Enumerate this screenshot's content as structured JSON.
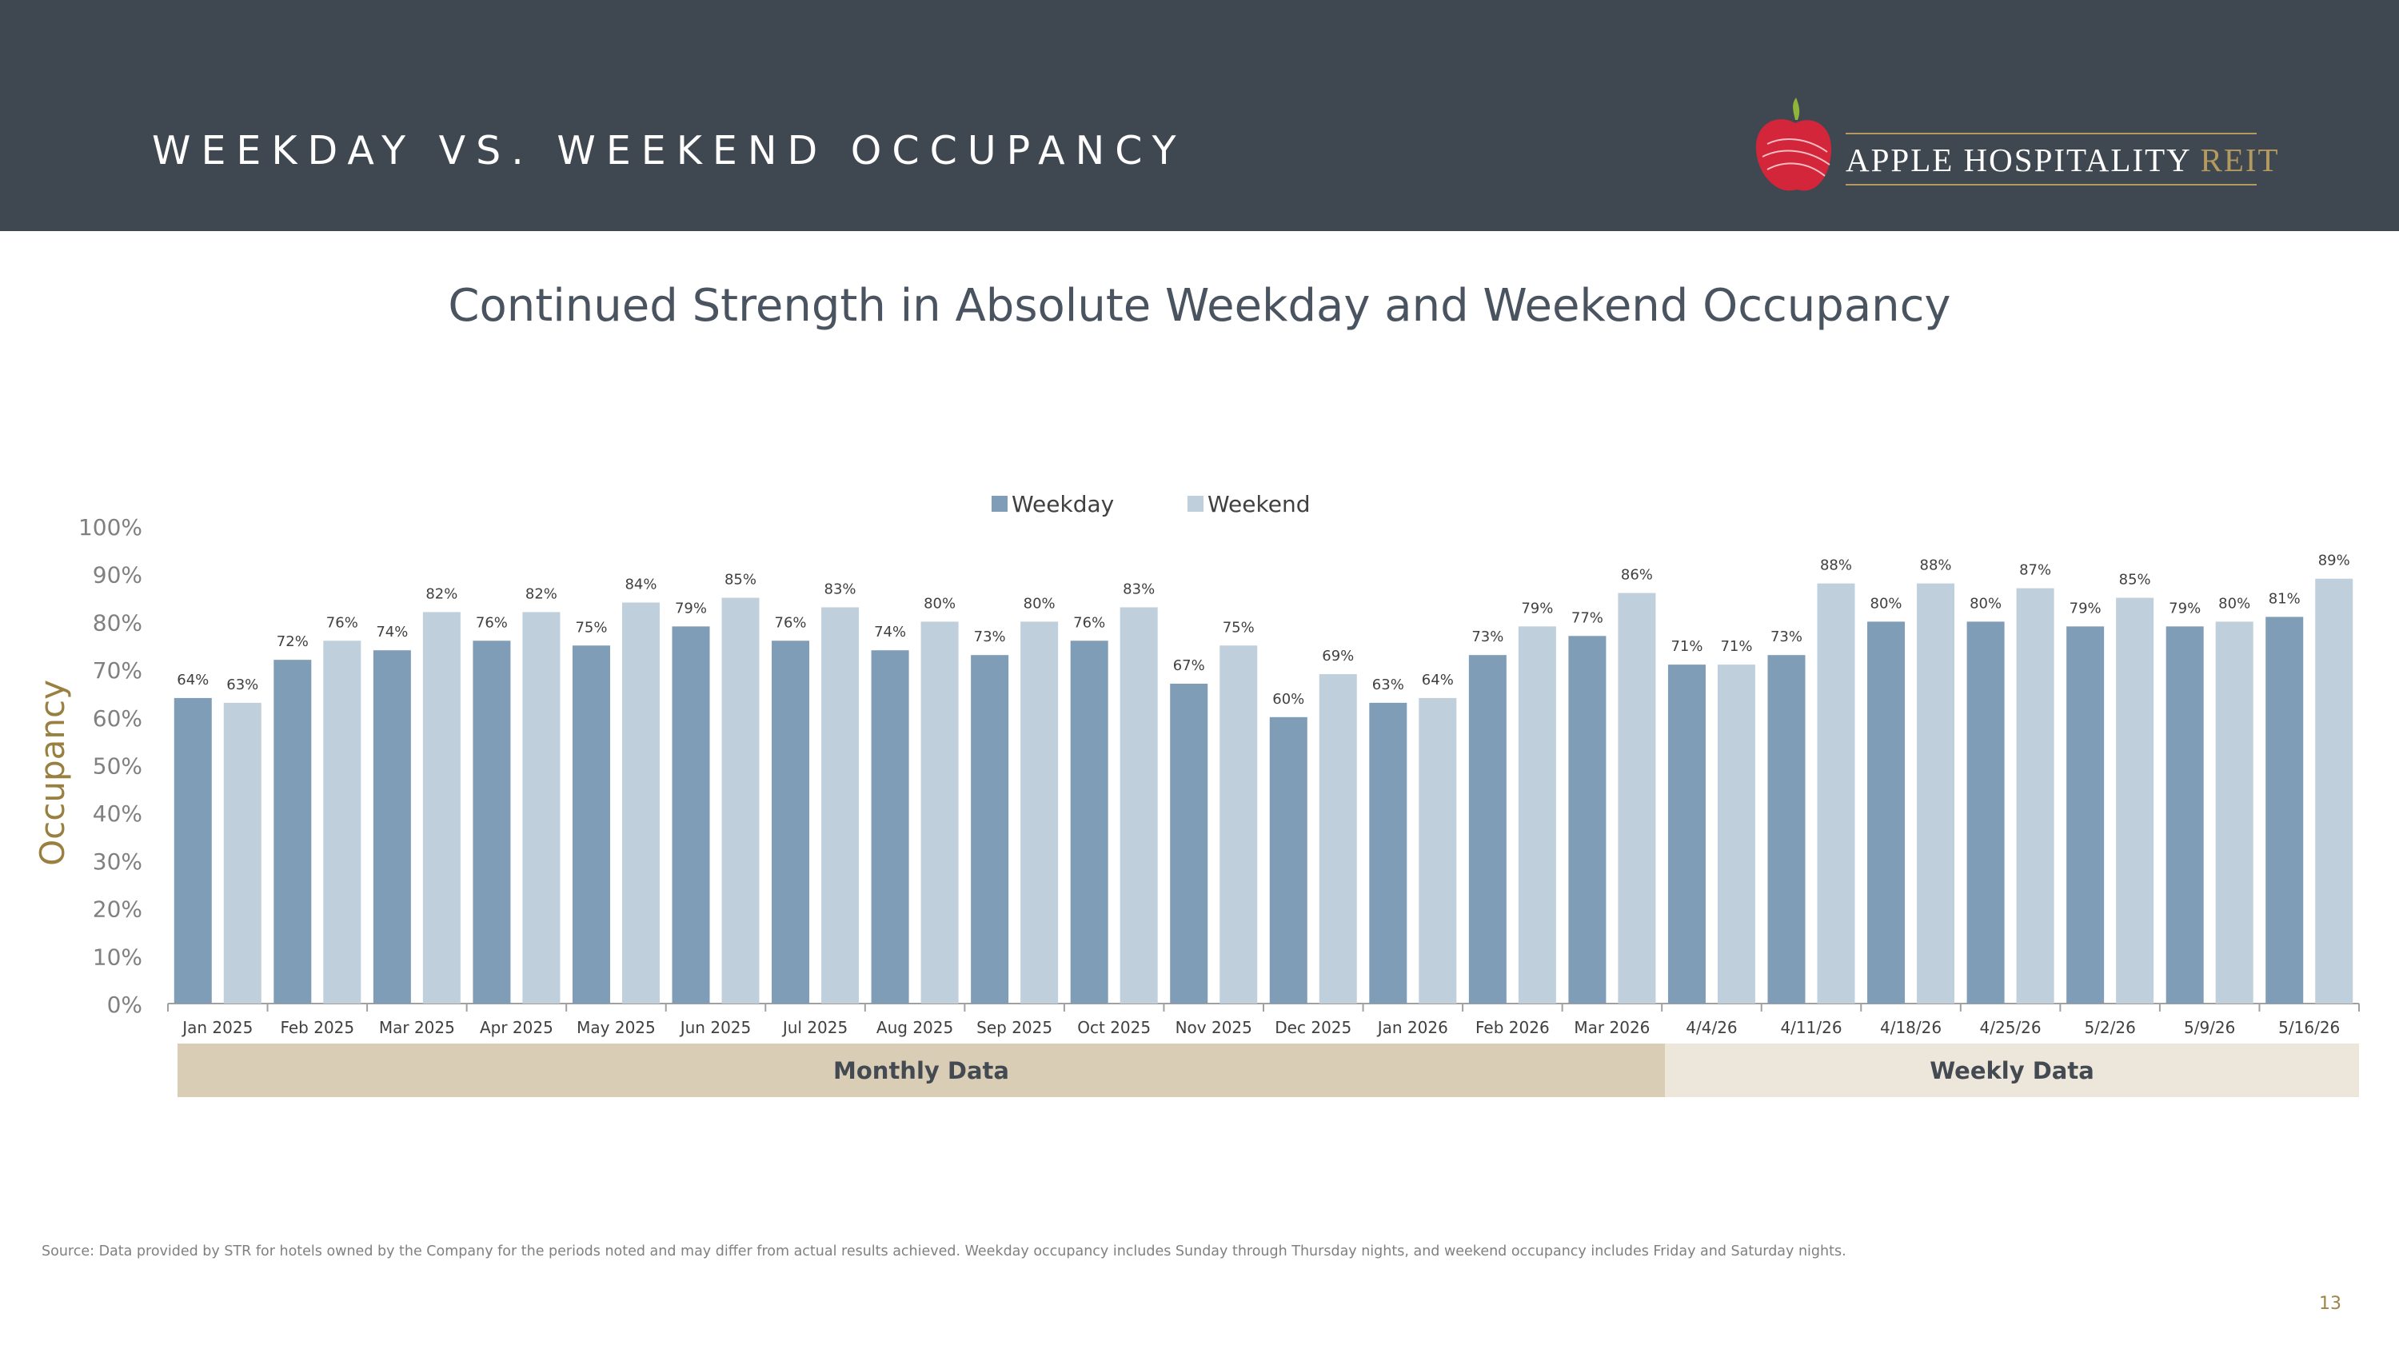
{
  "header": {
    "title": "WEEKDAY VS. WEEKEND OCCUPANCY"
  },
  "logo": {
    "brand_text": "APPLE HOSPITALITY",
    "brand_suffix": "REIT"
  },
  "chart_data": {
    "type": "bar",
    "title": "Continued Strength in Absolute Weekday and Weekend Occupancy",
    "xlabel": "",
    "ylabel": "Occupancy",
    "ylim": [
      0,
      100
    ],
    "yticks": [
      "0%",
      "10%",
      "20%",
      "30%",
      "40%",
      "50%",
      "60%",
      "70%",
      "80%",
      "90%",
      "100%"
    ],
    "legend_position": "top-center",
    "grid": false,
    "categories": [
      "Jan 2025",
      "Feb 2025",
      "Mar 2025",
      "Apr 2025",
      "May 2025",
      "Jun 2025",
      "Jul 2025",
      "Aug 2025",
      "Sep 2025",
      "Oct 2025",
      "Nov 2025",
      "Dec 2025",
      "Jan 2026",
      "Feb 2026",
      "Mar 2026",
      "4/4/26",
      "4/11/26",
      "4/18/26",
      "4/25/26",
      "5/2/26",
      "5/9/26",
      "5/16/26"
    ],
    "series": [
      {
        "name": "Weekday",
        "color": "#7f9db6",
        "values": [
          64,
          72,
          74,
          76,
          75,
          79,
          76,
          74,
          73,
          76,
          67,
          60,
          63,
          73,
          77,
          71,
          73,
          80,
          80,
          79,
          79,
          81
        ],
        "labels": [
          "64%",
          "72%",
          "74%",
          "76%",
          "75%",
          "79%",
          "76%",
          "74%",
          "73%",
          "76%",
          "67%",
          "60%",
          "63%",
          "73%",
          "77%",
          "71%",
          "73%",
          "80%",
          "80%",
          "79%",
          "79%",
          "81%"
        ]
      },
      {
        "name": "Weekend",
        "color": "#bfcfdc",
        "values": [
          63,
          76,
          82,
          82,
          84,
          85,
          83,
          80,
          80,
          83,
          75,
          69,
          64,
          79,
          86,
          71,
          88,
          88,
          87,
          85,
          80,
          89
        ],
        "labels": [
          "63%",
          "76%",
          "82%",
          "82%",
          "84%",
          "85%",
          "83%",
          "80%",
          "80%",
          "83%",
          "75%",
          "69%",
          "64%",
          "79%",
          "86%",
          "71%",
          "88%",
          "88%",
          "87%",
          "85%",
          "80%",
          "89%"
        ]
      }
    ],
    "groups": [
      {
        "label": "Monthly Data",
        "color": "#d9cdb6"
      },
      {
        "label": "Weekly Data",
        "color": "#ece6db"
      }
    ]
  },
  "footnote": {
    "source": "Source:  Data provided by STR for hotels owned by the Company for the periods noted and may differ from actual results achieved. Weekday occupancy includes Sunday through Thursday nights, and weekend occupancy includes Friday and Saturday nights."
  },
  "page": {
    "number": "13"
  }
}
